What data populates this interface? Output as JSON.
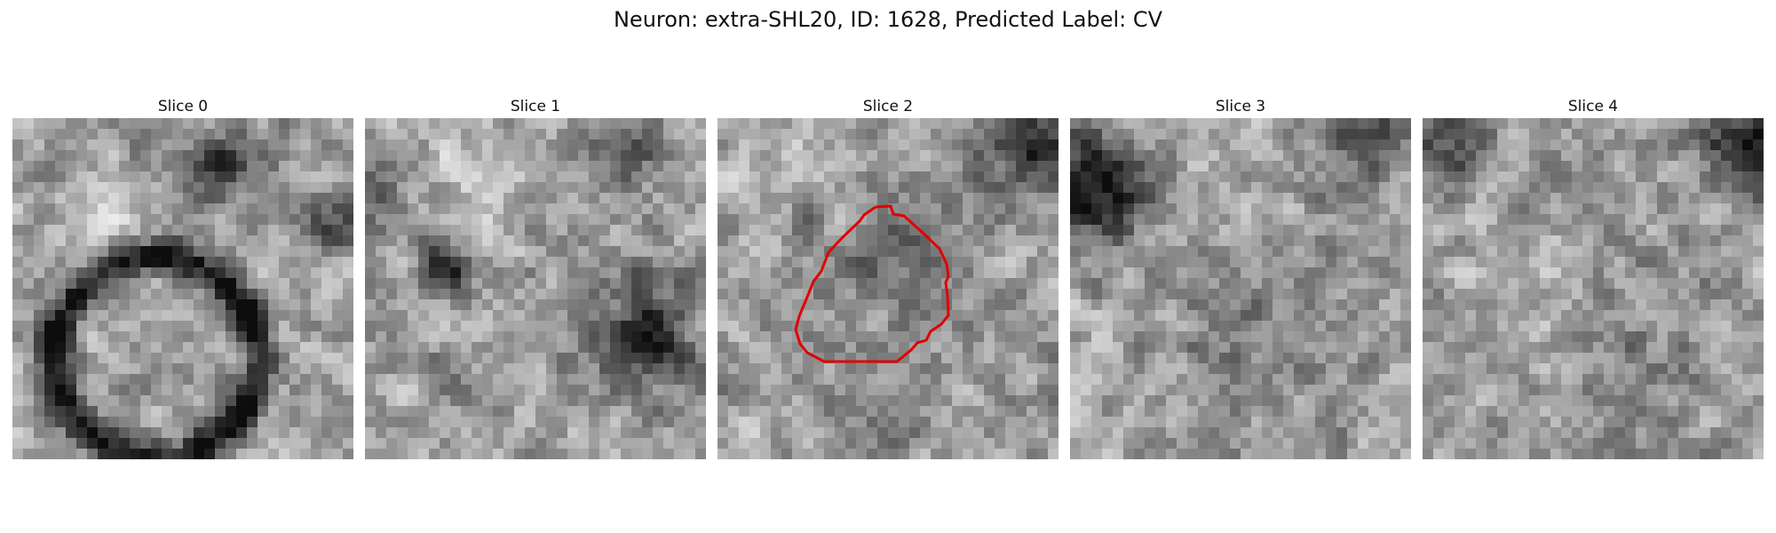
{
  "figure": {
    "title": "Neuron: extra-SHL20, ID: 1628, Predicted Label: CV"
  },
  "slices": [
    {
      "label": "Slice 0"
    },
    {
      "label": "Slice 1"
    },
    {
      "label": "Slice 2",
      "has_contour": true
    },
    {
      "label": "Slice 3"
    },
    {
      "label": "Slice 4"
    }
  ],
  "colors": {
    "contour": "#e00000",
    "colormap": "gray"
  }
}
